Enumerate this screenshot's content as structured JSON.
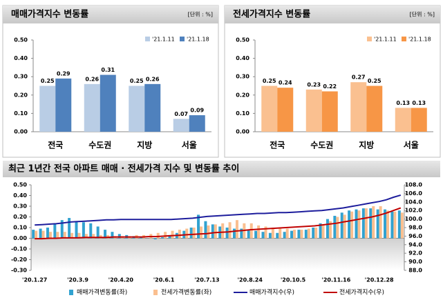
{
  "chart_data": [
    {
      "type": "bar",
      "title": "매매가격지수 변동률",
      "unit": "[단위 : %]",
      "categories": [
        "전국",
        "수도권",
        "지방",
        "서울"
      ],
      "series": [
        {
          "name": "'21.1.11",
          "color": "#b9cde5",
          "values": [
            0.25,
            0.26,
            0.25,
            0.07
          ],
          "value_labels": [
            "0.25",
            "0.26",
            "0.25",
            "0.07"
          ]
        },
        {
          "name": "'21.1.18",
          "color": "#4f81bd",
          "values": [
            0.29,
            0.31,
            0.26,
            0.09
          ],
          "value_labels": [
            "0.29",
            "0.31",
            "0.26",
            "0.09"
          ]
        }
      ],
      "ylim": [
        0,
        0.5
      ],
      "yticks": [
        {
          "value": 0,
          "label": "0.00"
        },
        {
          "value": 0.1,
          "label": "0.10"
        },
        {
          "value": 0.2,
          "label": "0.20"
        },
        {
          "value": 0.3,
          "label": "0.30"
        },
        {
          "value": 0.4,
          "label": "0.40"
        },
        {
          "value": 0.5,
          "label": "0.50"
        }
      ]
    },
    {
      "type": "bar",
      "title": "전세가격지수 변동률",
      "unit": "[단위 : %]",
      "categories": [
        "전국",
        "수도권",
        "지방",
        "서울"
      ],
      "series": [
        {
          "name": "'21.1.11",
          "color": "#fac090",
          "values": [
            0.25,
            0.23,
            0.27,
            0.13
          ],
          "value_labels": [
            "0.25",
            "0.23",
            "0.27",
            "0.13"
          ]
        },
        {
          "name": "'21.1.18",
          "color": "#f79646",
          "values": [
            0.24,
            0.22,
            0.25,
            0.13
          ],
          "value_labels": [
            "0.24",
            "0.22",
            "0.25",
            "0.13"
          ]
        }
      ],
      "ylim": [
        0,
        0.5
      ],
      "yticks": [
        {
          "value": 0,
          "label": "0.00"
        },
        {
          "value": 0.1,
          "label": "0.10"
        },
        {
          "value": 0.2,
          "label": "0.20"
        },
        {
          "value": 0.3,
          "label": "0.30"
        },
        {
          "value": 0.4,
          "label": "0.40"
        },
        {
          "value": 0.5,
          "label": "0.50"
        }
      ]
    },
    {
      "type": "combo",
      "title": "최근 1년간 전국 아파트 매매 · 전세가격 지수 및 변동률 추이",
      "categories": [
        "'20.1.27",
        null,
        null,
        null,
        null,
        null,
        "'20.3.9",
        null,
        null,
        null,
        null,
        null,
        "'20.4.20",
        null,
        null,
        null,
        null,
        null,
        "'20.6.1",
        null,
        null,
        null,
        null,
        null,
        "'20.7.13",
        null,
        null,
        null,
        null,
        null,
        "'20.8.24",
        null,
        null,
        null,
        null,
        null,
        "'20.10.5",
        null,
        null,
        null,
        null,
        null,
        "'20.11.16",
        null,
        null,
        null,
        null,
        null,
        "'20.12.28",
        null,
        null,
        null
      ],
      "series": [
        {
          "name": "매매가격변동률(좌)",
          "kind": "bar",
          "color": "#31a2d0",
          "values": [
            0.08,
            0.09,
            0.1,
            0.14,
            0.17,
            0.19,
            0.16,
            0.15,
            0.14,
            0.11,
            0.08,
            0.06,
            0.04,
            0.03,
            0.02,
            0.01,
            0.0,
            -0.01,
            0.01,
            0.03,
            0.05,
            0.07,
            0.1,
            0.22,
            0.16,
            0.13,
            0.11,
            0.1,
            0.09,
            0.09,
            0.08,
            0.07,
            0.06,
            0.05,
            0.05,
            0.06,
            0.07,
            0.08,
            0.08,
            0.1,
            0.14,
            0.18,
            0.21,
            0.24,
            0.26,
            0.27,
            0.28,
            0.28,
            0.27,
            0.27,
            0.25,
            0.26
          ]
        },
        {
          "name": "전세가격변동률(좌)",
          "kind": "bar",
          "color": "#fabf8f",
          "values": [
            0.07,
            0.07,
            0.06,
            0.06,
            0.06,
            0.05,
            0.05,
            0.04,
            0.04,
            0.03,
            0.03,
            0.02,
            0.02,
            0.02,
            0.03,
            0.03,
            0.04,
            0.05,
            0.06,
            0.07,
            0.08,
            0.09,
            0.1,
            0.11,
            0.12,
            0.13,
            0.14,
            0.15,
            0.17,
            0.14,
            0.14,
            0.12,
            0.11,
            0.1,
            0.09,
            0.09,
            0.08,
            0.08,
            0.09,
            0.1,
            0.13,
            0.16,
            0.2,
            0.22,
            0.25,
            0.26,
            0.28,
            0.3,
            0.3,
            0.26,
            0.25,
            0.24
          ]
        },
        {
          "name": "매매가격지수(우)",
          "kind": "line",
          "axis": "y2",
          "color": "#1c1c9c",
          "values": [
            98.6,
            98.7,
            98.8,
            98.9,
            99.1,
            99.3,
            99.4,
            99.5,
            99.6,
            99.7,
            99.8,
            99.8,
            99.9,
            99.9,
            99.9,
            99.9,
            99.9,
            99.9,
            99.9,
            99.9,
            100.0,
            100.1,
            100.2,
            100.4,
            100.6,
            100.7,
            100.8,
            100.9,
            101.0,
            101.1,
            101.2,
            101.3,
            101.3,
            101.4,
            101.5,
            101.5,
            101.6,
            101.7,
            101.8,
            101.9,
            102.0,
            102.2,
            102.4,
            102.6,
            102.9,
            103.2,
            103.5,
            103.8,
            104.1,
            104.5,
            105.1,
            105.6
          ]
        },
        {
          "name": "전세가격지수(우)",
          "kind": "line",
          "axis": "y2",
          "color": "#c00000",
          "values": [
            95.4,
            95.4,
            95.5,
            95.5,
            95.6,
            95.6,
            95.6,
            95.7,
            95.7,
            95.7,
            95.7,
            95.8,
            95.8,
            95.8,
            95.8,
            95.8,
            95.9,
            95.9,
            96.0,
            96.1,
            96.2,
            96.3,
            96.4,
            96.5,
            96.6,
            96.8,
            96.9,
            97.0,
            97.2,
            97.3,
            97.5,
            97.6,
            97.7,
            97.8,
            97.9,
            98.0,
            98.1,
            98.2,
            98.3,
            98.4,
            98.6,
            98.8,
            99.0,
            99.3,
            99.6,
            99.9,
            100.2,
            100.5,
            100.9,
            101.4,
            102.0,
            102.6
          ]
        }
      ],
      "ylim": [
        -0.3,
        0.5
      ],
      "yticks": [
        {
          "value": -0.3,
          "label": "-0.30"
        },
        {
          "value": -0.2,
          "label": "-0.20"
        },
        {
          "value": -0.1,
          "label": "-0.10"
        },
        {
          "value": 0,
          "label": "0.00"
        },
        {
          "value": 0.1,
          "label": "0.10"
        },
        {
          "value": 0.2,
          "label": "0.20"
        },
        {
          "value": 0.3,
          "label": "0.30"
        },
        {
          "value": 0.4,
          "label": "0.40"
        },
        {
          "value": 0.5,
          "label": "0.50"
        }
      ],
      "y2lim": [
        88,
        108
      ],
      "y2ticks": [
        {
          "value": 88,
          "label": "88.0"
        },
        {
          "value": 90,
          "label": "90.0"
        },
        {
          "value": 92,
          "label": "92.0"
        },
        {
          "value": 94,
          "label": "94.0"
        },
        {
          "value": 96,
          "label": "96.0"
        },
        {
          "value": 98,
          "label": "98.0"
        },
        {
          "value": 100,
          "label": "100.0"
        },
        {
          "value": 102,
          "label": "102.0"
        },
        {
          "value": 104,
          "label": "104.0"
        },
        {
          "value": 106,
          "label": "106.0"
        },
        {
          "value": 108,
          "label": "108.0"
        }
      ]
    }
  ]
}
